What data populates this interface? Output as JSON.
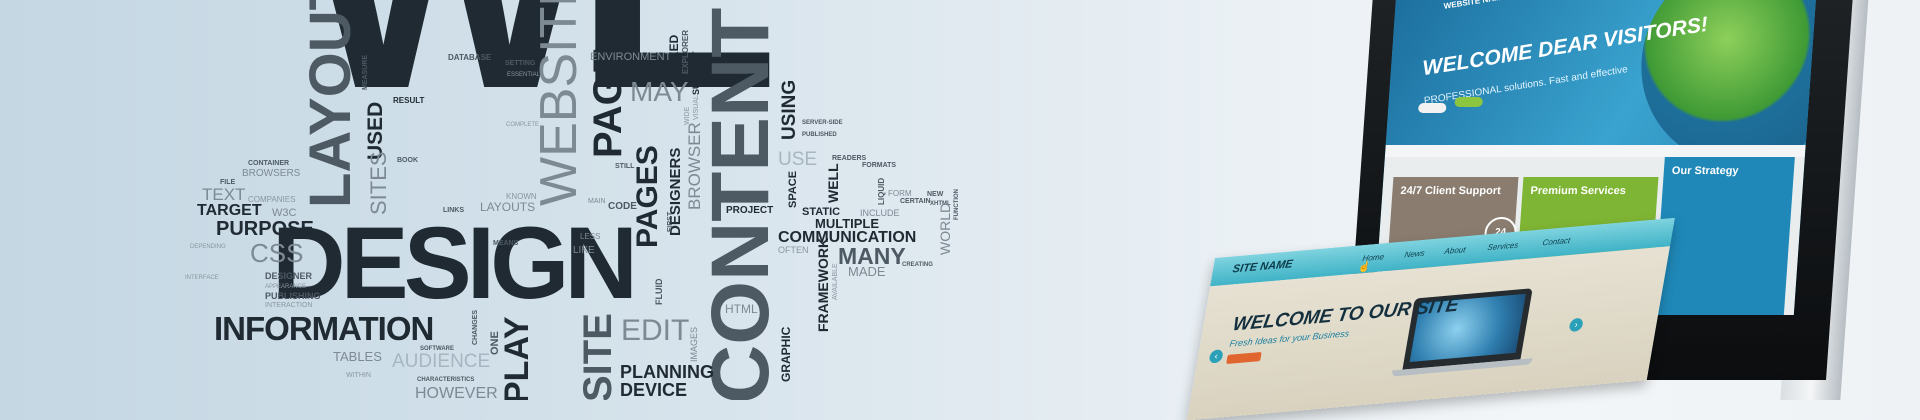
{
  "word_cloud": {
    "words": [
      "WE",
      "DESIGN",
      "LAYOUT",
      "WEBSITE",
      "PAGE",
      "PAGES",
      "CONTENT",
      "INFORMATION",
      "PLAY",
      "SITE",
      "EDIT",
      "MAY",
      "USING",
      "DESIGNERS",
      "BROWSER",
      "USED",
      "SITES",
      "PURPOSE",
      "TARGET",
      "TEXT",
      "CSS",
      "W3C",
      "DESIGNER",
      "PUBLISHING",
      "TABLES",
      "AUDIENCE",
      "HOWEVER",
      "PLANNING",
      "DEVICE",
      "GRAPHIC",
      "HTML",
      "FRAMEWORK",
      "MANY",
      "MADE",
      "COMMUNICATION",
      "MULTIPLE",
      "STATIC",
      "SPACE",
      "WELL",
      "PROJECT",
      "FLUID",
      "LIKE",
      "LESS",
      "CODE",
      "MAIN",
      "LAYOUTS",
      "KNOWN",
      "LINKS",
      "MEANS",
      "RESULT",
      "DATABASE",
      "SETTING",
      "ENVIRONMENT",
      "FIXED",
      "SUPPORT",
      "EXPLORER",
      "READERS",
      "FORMATS",
      "FORM",
      "NEW",
      "CERTAIN",
      "XHTML",
      "FUNCTION",
      "WORLD",
      "INCLUDE",
      "USE",
      "STILL",
      "BOOK",
      "CONTAINER",
      "BROWSERS",
      "FILE",
      "COMPANIES",
      "DEPENDING",
      "INTERFACE",
      "APPEARANCE",
      "INTERACTION",
      "ONE",
      "CHANGES",
      "SOFTWARE",
      "CHARACTERISTICS",
      "WITHIN",
      "IMAGES",
      "OFTEN",
      "AVAILABLE",
      "CREATING",
      "SERVER-SIDE",
      "PUBLISHED",
      "MEASURE",
      "COMPLETE",
      "ESSENTIAL",
      "FIRST",
      "WIDE",
      "VISUAL",
      "LIQUID"
    ]
  },
  "monitor": {
    "top_label": "WEBSITE NAME",
    "hero_title": "WELCOME DEAR VISITORS!",
    "hero_subtitle": "PROFESSIONAL solutions. Fast and effective",
    "cards": [
      "24/7 Client Support",
      "Premium Services",
      "Our Strategy"
    ],
    "badge": "24"
  },
  "site_card": {
    "site_name": "SITE NAME",
    "nav": [
      "Home",
      "News",
      "About",
      "Services",
      "Contact"
    ],
    "title": "WELCOME TO OUR SITE",
    "subtitle": "Fresh Ideas for your Business",
    "prev_arrow": "‹",
    "next_arrow": "›"
  },
  "colors": {
    "background": "#d3e1ea",
    "word_dark": "#1f2a33",
    "word_mid": "#4d5963",
    "accent_teal": "#3fb3c6",
    "accent_orange": "#e0652f",
    "green_card": "#7fb534",
    "blue_card": "#1f88b8"
  },
  "icons": [
    "cursor-icon",
    "prev-arrow-icon",
    "next-arrow-icon",
    "globe-illustration",
    "laptop-illustration"
  ]
}
